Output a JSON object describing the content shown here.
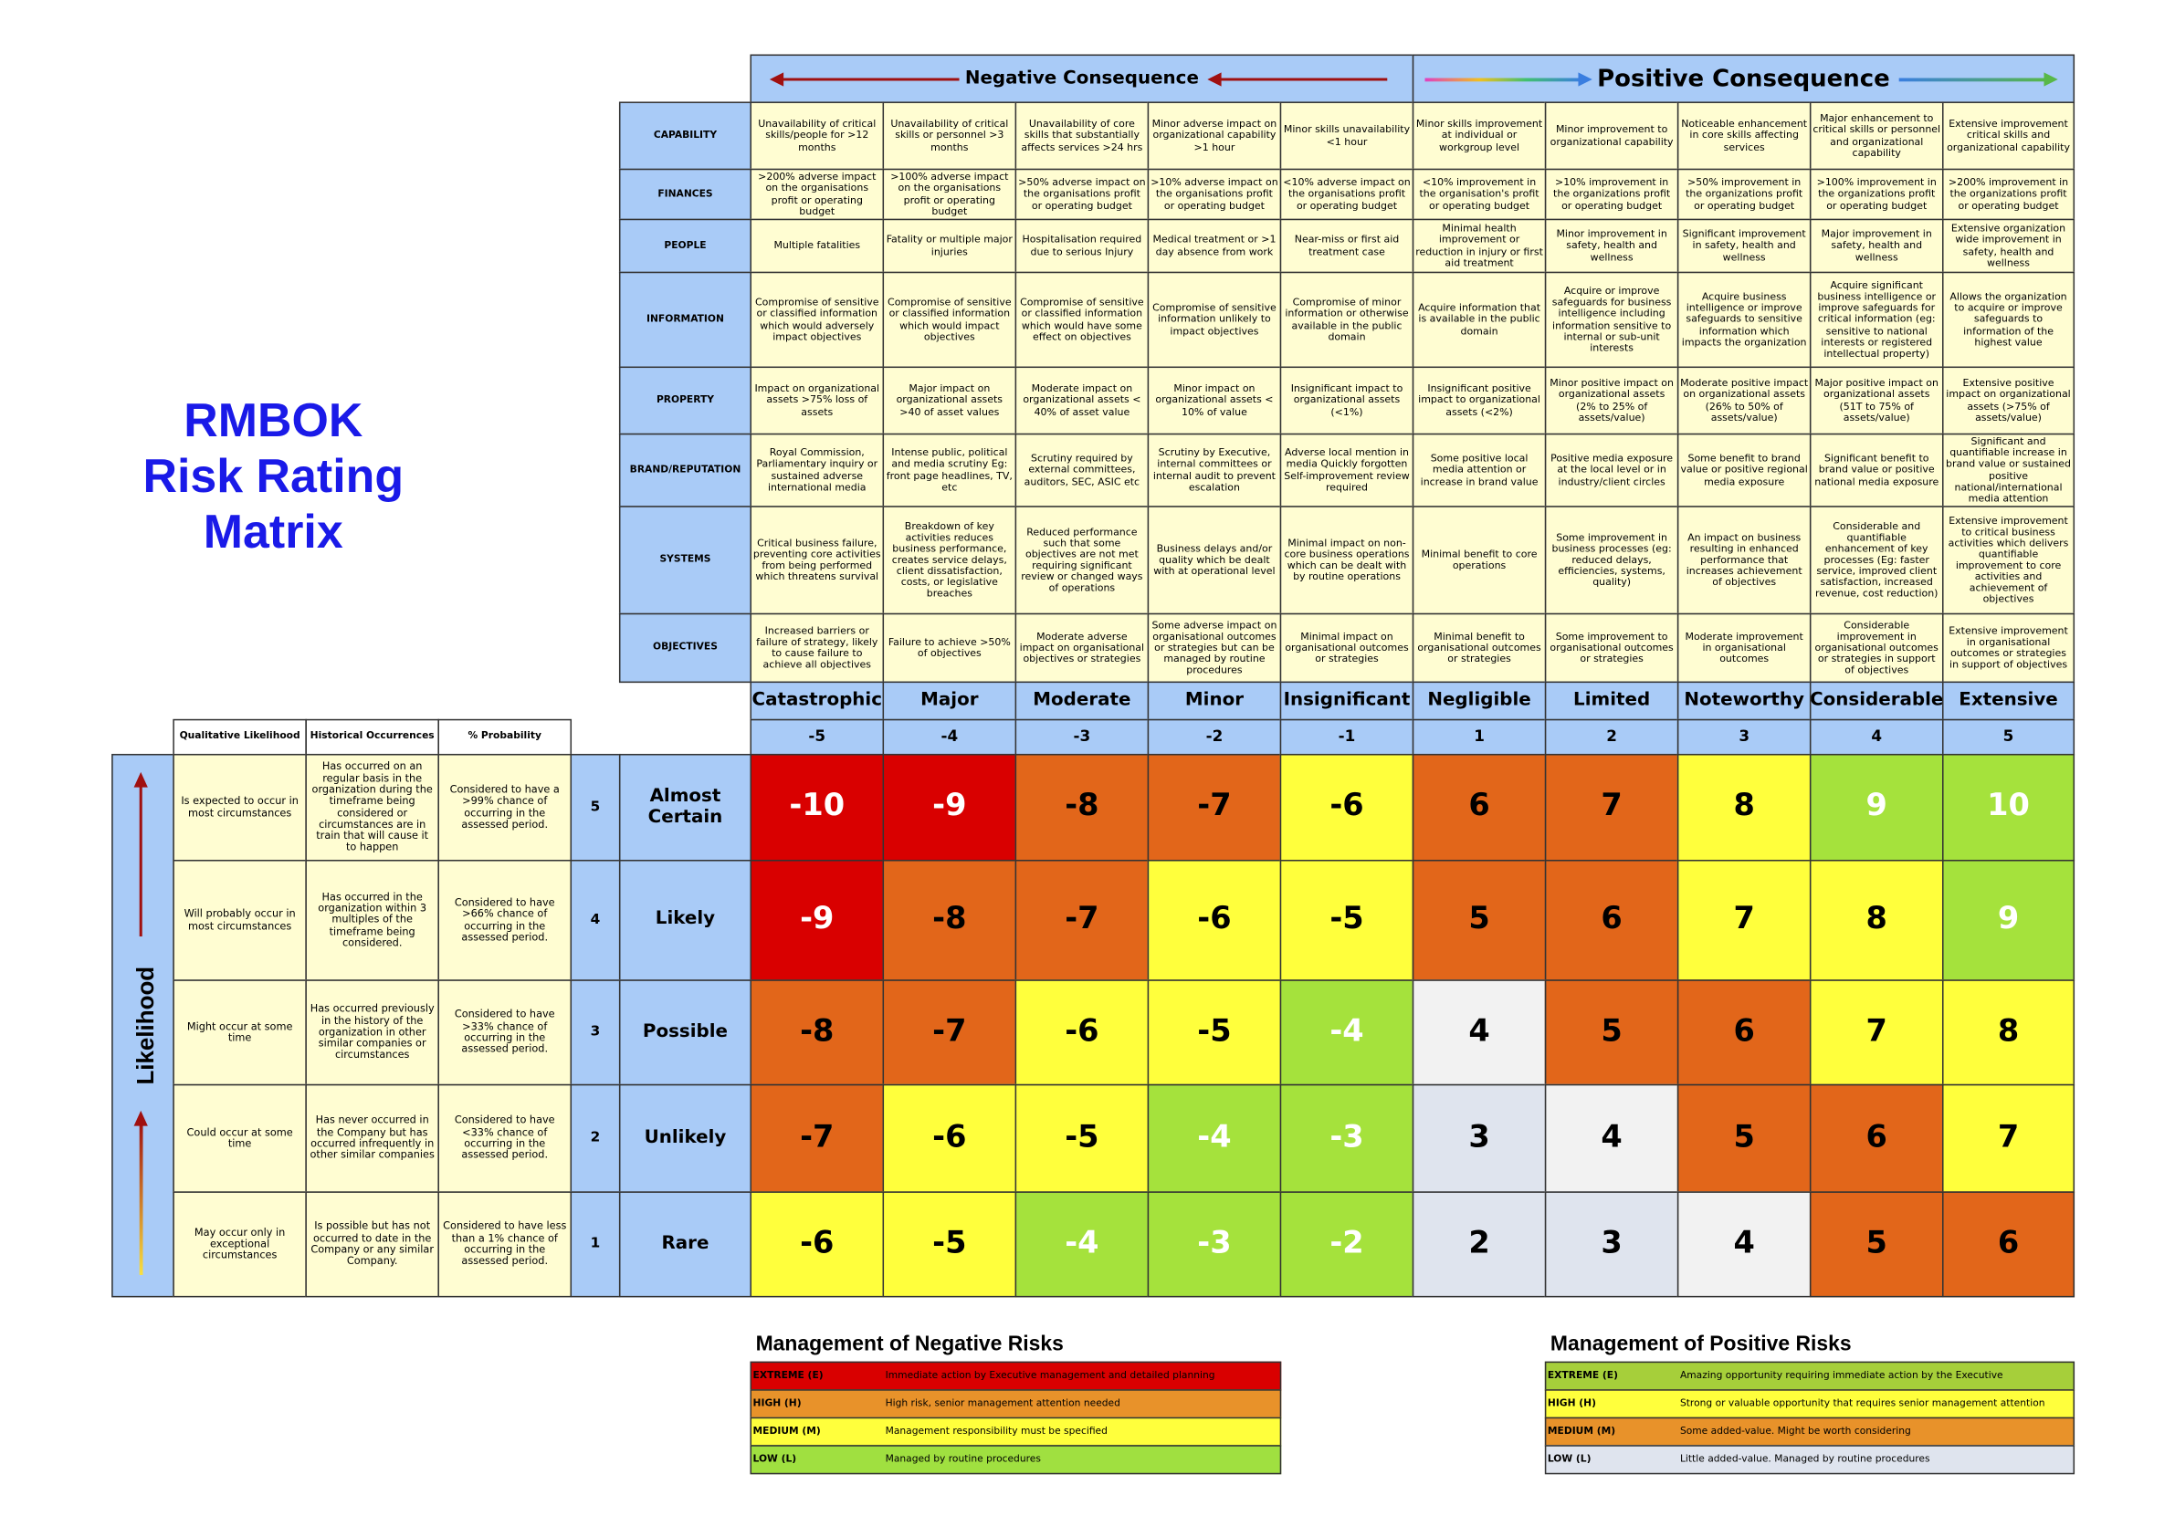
{
  "title_lines": [
    "RMBOK",
    "Risk Rating",
    "Matrix"
  ],
  "consequence_headers": {
    "negative": "Negative Consequence",
    "positive": "Positive Consequence"
  },
  "impact_rows": [
    {
      "category": "CAPABILITY",
      "cells": [
        "Unavailability of critical skills/people for >12 months",
        "Unavailability of critical skills or personnel >3 months",
        "Unavailability of core skills that substantially affects services >24 hrs",
        "Minor adverse impact on organizational capability >1 hour",
        "Minor skills unavailability <1 hour",
        "Minor skills improvement at individual or workgroup level",
        "Minor improvement to organizational capability",
        "Noticeable enhancement in core skills affecting services",
        "Major enhancement to critical skills or personnel and organizational capability",
        "Extensive improvement critical skills and organizational capability"
      ]
    },
    {
      "category": "FINANCES",
      "cells": [
        ">200% adverse impact on the organisations profit or operating budget",
        ">100% adverse impact on the organisations profit or operating budget",
        ">50% adverse impact on the organisations profit or operating budget",
        ">10% adverse impact on the organisations profit or operating budget",
        "<10% adverse impact on the organisations profit or operating budget",
        "<10% improvement in the organisation's profit or operating budget",
        ">10% improvement in the organizations profit or operating budget",
        ">50% improvement in the organizations profit or operating budget",
        ">100% improvement in the organizations profit or operating budget",
        ">200% improvement in the organizations profit or operating budget"
      ]
    },
    {
      "category": "PEOPLE",
      "cells": [
        "Multiple fatalities",
        "Fatality or multiple major injuries",
        "Hospitalisation required due to serious Injury",
        "Medical treatment or >1 day absence from work",
        "Near-miss or first aid treatment case",
        "Minimal health improvement or reduction in injury or first aid treatment",
        "Minor improvement in safety, health and wellness",
        "Significant improvement in safety, health and wellness",
        "Major improvement in safety, health and wellness",
        "Extensive organization wide improvement in safety, health and wellness"
      ]
    },
    {
      "category": "INFORMATION",
      "cells": [
        "Compromise of sensitive or classified information which would adversely impact objectives",
        "Compromise of sensitive or classified information which would impact objectives",
        "Compromise of sensitive or classified information which would have some effect on objectives",
        "Compromise of sensitive information unlikely to impact objectives",
        "Compromise of minor information or otherwise available in the public domain",
        "Acquire information that is available in the public domain",
        "Acquire or improve safeguards for business intelligence including information sensitive to internal or sub-unit interests",
        "Acquire business intelligence or improve safeguards to sensitive information which impacts the organization",
        "Acquire significant business intelligence or improve safeguards for critical information (eg: sensitive to national interests or registered intellectual property)",
        "Allows the organization to acquire or improve safeguards to information of the highest value"
      ]
    },
    {
      "category": "PROPERTY",
      "cells": [
        "Impact on organizational assets >75% loss of assets",
        "Major impact on organizational assets >40 of asset values",
        "Moderate impact on organizational assets < 40% of asset value",
        "Minor impact on organizational assets < 10% of value",
        "Insignificant impact to organizational assets (<1%)",
        "Insignificant positive impact to organizational assets (<2%)",
        "Minor positive impact on organizational assets (2% to 25% of assets/value)",
        "Moderate positive impact on organizational assets (26% to 50% of assets/value)",
        "Major positive impact on organizational assets (51T to 75% of assets/value)",
        "Extensive positive impact on organizational assets (>75% of assets/value)"
      ]
    },
    {
      "category": "BRAND/REPUTATION",
      "cells": [
        "Royal Commission, Parliamentary inquiry or sustained adverse international media",
        "Intense public, political and media scrutiny Eg: front page headlines, TV, etc",
        "Scrutiny required by external committees, auditors, SEC, ASIC etc",
        "Scrutiny by Executive, internal committees or internal audit to prevent escalation",
        "Adverse local mention in media Quickly forgotten Self-improvement review required",
        "Some positive  local media attention or increase in brand value",
        "Positive media exposure at the local level or in industry/client circles",
        "Some benefit to brand value or positive regional media exposure",
        "Significant benefit to brand value or positive national media exposure",
        "Significant and quantifiable increase in brand value or sustained positive national/international media attention"
      ]
    },
    {
      "category": "SYSTEMS",
      "cells": [
        "Critical business failure, preventing core activities from being performed which threatens survival",
        "Breakdown of key activities reduces business performance, creates service delays, client dissatisfaction, costs, or legislative breaches",
        "Reduced performance such that some objectives are not met requiring significant review or changed ways of operations",
        "Business delays and/or quality which be dealt with at operational level",
        "Minimal impact on non-core business operations which can be dealt with by routine operations",
        "Minimal benefit to core operations",
        "Some improvement in business processes (eg: reduced delays, efficiencies, systems, quality)",
        "An impact on business resulting in enhanced performance that increases achievement of objectives",
        "Considerable and quantifiable enhancement of key processes  (Eg: faster service, improved client satisfaction, increased revenue, cost reduction)",
        "Extensive improvement to critical business activities which delivers quantifiable improvement to core activities and achievement of objectives"
      ]
    },
    {
      "category": "OBJECTIVES",
      "cells": [
        "Increased barriers or failure of strategy, likely to cause failure to achieve all objectives",
        "Failure to achieve >50% of objectives",
        "Moderate adverse impact on organisational objectives or strategies",
        "Some adverse impact on organisational outcomes or strategies but can be managed by routine procedures",
        "Minimal impact on organisational outcomes or strategies",
        "Minimal benefit to organisational outcomes or strategies",
        "Some improvement to organisational outcomes or strategies",
        "Moderate improvement in organisational outcomes",
        "Considerable improvement in organisational outcomes or strategies in support of objectives",
        "Extensive improvement in organisational outcomes or strategies in support of objectives"
      ]
    }
  ],
  "consequence_levels": [
    {
      "name": "Catastrophic",
      "score": -5
    },
    {
      "name": "Major",
      "score": -4
    },
    {
      "name": "Moderate",
      "score": -3
    },
    {
      "name": "Minor",
      "score": -2
    },
    {
      "name": "Insignificant",
      "score": -1
    },
    {
      "name": "Negligible",
      "score": 1
    },
    {
      "name": "Limited",
      "score": 2
    },
    {
      "name": "Noteworthy",
      "score": 3
    },
    {
      "name": "Considerable",
      "score": 4
    },
    {
      "name": "Extensive",
      "score": 5
    }
  ],
  "likelihood_axis_label": "Likelihood",
  "likelihood_columns": [
    "Qualitative Likelihood",
    "Historical Occurrences",
    "% Probability"
  ],
  "likelihood_rows": [
    {
      "level": 5,
      "name": "Almost Certain",
      "qualitative": "Is expected to occur in most circumstances",
      "historical": "Has occurred on an regular basis in the organization during the timeframe being considered or circumstances are in train that will cause it to happen",
      "probability": "Considered to have a >99% chance of occurring in the assessed period.",
      "ratings": [
        -10,
        -9,
        -8,
        -7,
        -6,
        6,
        7,
        8,
        9,
        10
      ],
      "colors": [
        "#d90000",
        "#d90000",
        "#e2661a",
        "#e2661a",
        "#ffff3c",
        "#e2661a",
        "#e2661a",
        "#ffff3c",
        "#a5e23c",
        "#a5e23c"
      ],
      "text_colors": [
        "#ffffff",
        "#ffffff",
        "#000000",
        "#000000",
        "#000000",
        "#000000",
        "#000000",
        "#000000",
        "#ffffff",
        "#ffffff"
      ]
    },
    {
      "level": 4,
      "name": "Likely",
      "qualitative": "Will probably occur in most circumstances",
      "historical": "Has occurred in the organization within 3 multiples of the timeframe being considered.",
      "probability": "Considered to have >66% chance of occurring in the assessed period.",
      "ratings": [
        -9,
        -8,
        -7,
        -6,
        -5,
        5,
        6,
        7,
        8,
        9
      ],
      "colors": [
        "#d90000",
        "#e2661a",
        "#e2661a",
        "#ffff3c",
        "#ffff3c",
        "#e2661a",
        "#e2661a",
        "#ffff3c",
        "#ffff3c",
        "#a5e23c"
      ],
      "text_colors": [
        "#ffffff",
        "#000000",
        "#000000",
        "#000000",
        "#000000",
        "#000000",
        "#000000",
        "#000000",
        "#000000",
        "#ffffff"
      ]
    },
    {
      "level": 3,
      "name": "Possible",
      "qualitative": "Might occur at some time",
      "historical": "Has occurred previously in the history of the organization in other similar companies or circumstances",
      "probability": "Considered to have >33% chance of occurring in the assessed period.",
      "ratings": [
        -8,
        -7,
        -6,
        -5,
        -4,
        4,
        5,
        6,
        7,
        8
      ],
      "colors": [
        "#e2661a",
        "#e2661a",
        "#ffff3c",
        "#ffff3c",
        "#a5e23c",
        "#f2f2f2",
        "#e2661a",
        "#e2661a",
        "#ffff3c",
        "#ffff3c"
      ],
      "text_colors": [
        "#000000",
        "#000000",
        "#000000",
        "#000000",
        "#ffffff",
        "#000000",
        "#000000",
        "#000000",
        "#000000",
        "#000000"
      ]
    },
    {
      "level": 2,
      "name": "Unlikely",
      "qualitative": "Could occur at some time",
      "historical": "Has never occurred in the Company but has occurred infrequently in other similar companies",
      "probability": "Considered to have <33% chance of occurring in the assessed period.",
      "ratings": [
        -7,
        -6,
        -5,
        -4,
        -3,
        3,
        4,
        5,
        6,
        7
      ],
      "colors": [
        "#e2661a",
        "#ffff3c",
        "#ffff3c",
        "#a5e23c",
        "#a5e23c",
        "#dfe4ee",
        "#f2f2f2",
        "#e2661a",
        "#e2661a",
        "#ffff3c"
      ],
      "text_colors": [
        "#000000",
        "#000000",
        "#000000",
        "#ffffff",
        "#ffffff",
        "#000000",
        "#000000",
        "#000000",
        "#000000",
        "#000000"
      ]
    },
    {
      "level": 1,
      "name": "Rare",
      "qualitative": "May occur only in exceptional circumstances",
      "historical": "Is possible but has not occurred to date in the Company or any similar Company.",
      "probability": "Considered to have less than a 1% chance of occurring in the assessed period.",
      "ratings": [
        -6,
        -5,
        -4,
        -3,
        -2,
        2,
        3,
        4,
        5,
        6
      ],
      "colors": [
        "#ffff3c",
        "#ffff3c",
        "#a5e23c",
        "#a5e23c",
        "#a5e23c",
        "#dfe4ee",
        "#dfe4ee",
        "#f2f2f2",
        "#e2661a",
        "#e2661a"
      ],
      "text_colors": [
        "#000000",
        "#000000",
        "#ffffff",
        "#ffffff",
        "#ffffff",
        "#000000",
        "#000000",
        "#000000",
        "#000000",
        "#000000"
      ]
    }
  ],
  "legends": [
    {
      "title": "Management of Negative Risks",
      "rows": [
        {
          "level": "EXTREME (E)",
          "action": "Immediate action by Executive management and detailed planning",
          "color": "#d90000"
        },
        {
          "level": "HIGH (H)",
          "action": "High risk, senior management attention needed",
          "color": "#e8922a"
        },
        {
          "level": "MEDIUM (M)",
          "action": "Management responsibility must be specified",
          "color": "#ffff3c"
        },
        {
          "level": "LOW (L)",
          "action": "Managed by routine procedures",
          "color": "#a0e040"
        }
      ]
    },
    {
      "title": "Management of Positive Risks",
      "rows": [
        {
          "level": "EXTREME (E)",
          "action": "Amazing opportunity requiring immediate action by the Executive",
          "color": "#a6cf3a"
        },
        {
          "level": "HIGH (H)",
          "action": "Strong or valuable opportunity that requires senior management attention",
          "color": "#ffff3c"
        },
        {
          "level": "MEDIUM (M)",
          "action": "Some added-value.  Might be worth considering",
          "color": "#e8922a"
        },
        {
          "level": "LOW (L)",
          "action": "Little added-value. Managed by routine procedures",
          "color": "#dfe4ee"
        }
      ]
    }
  ]
}
